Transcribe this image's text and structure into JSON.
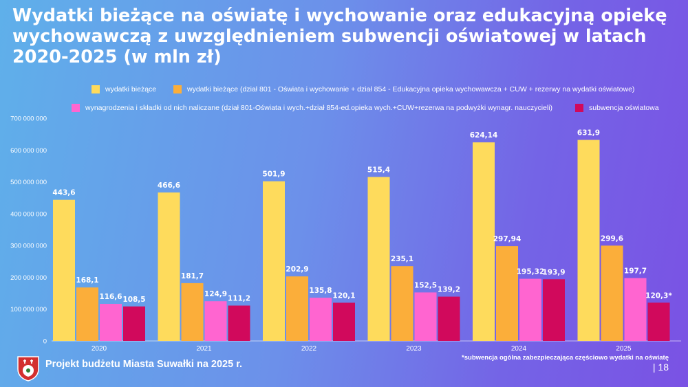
{
  "page": {
    "title": "Wydatki bieżące na oświatę i wychowanie oraz edukacyjną opiekę wychowawczą z uwzględnieniem subwencji oświatowej w latach 2020-2025 (w mln zł)",
    "footer": "Projekt budżetu Miasta Suwałki na 2025 r.",
    "footnote": "*subwencja ogólna zabezpieczająca częściowo wydatki na oświatę",
    "page_number": "| 18",
    "logo_icon": "suwalki-coat-of-arms-icon"
  },
  "chart_data": {
    "type": "bar",
    "categories": [
      "2020",
      "2021",
      "2022",
      "2023",
      "2024",
      "2025"
    ],
    "ylim": [
      0,
      700000000
    ],
    "yticks": [
      0,
      100000000,
      200000000,
      300000000,
      400000000,
      500000000,
      600000000,
      700000000
    ],
    "ytick_labels": [
      "0",
      "100 000 000",
      "200 000 000",
      "300 000 000",
      "400 000 000",
      "500 000 000",
      "600 000 000",
      "700 000 000"
    ],
    "legend_position": "top",
    "series": [
      {
        "name": "wydatki bieżące",
        "color": "#fedb5c",
        "values": [
          443600000,
          466600000,
          501900000,
          515400000,
          624140000,
          631900000
        ],
        "labels": [
          "443,6",
          "466,6",
          "501,9",
          "515,4",
          "624,14",
          "631,9"
        ]
      },
      {
        "name": "wydatki bieżące (dział 801 - Oświata i wychowanie + dział 854 - Edukacyjna opieka wychowawcza + CUW + rezerwy na wydatki oświatowe)",
        "color": "#fbae3a",
        "values": [
          168100000,
          181700000,
          202900000,
          235100000,
          297940000,
          299600000
        ],
        "labels": [
          "168,1",
          "181,7",
          "202,9",
          "235,1",
          "297,94",
          "299,6"
        ]
      },
      {
        "name": "wynagrodzenia i składki od nich naliczane (dział 801-Oświata i wych.+dział 854-ed.opieka wych.+CUW+rezerwa na podwyżki wynagr. nauczycieli)",
        "color": "#ff65d0",
        "values": [
          116600000,
          124900000,
          135800000,
          152500000,
          195320000,
          197700000
        ],
        "labels": [
          "116,6",
          "124,9",
          "135,8",
          "152,5",
          "195,32",
          "197,7"
        ]
      },
      {
        "name": "subwencja oświatowa",
        "color": "#d1095c",
        "values": [
          108500000,
          111200000,
          120100000,
          139200000,
          193900000,
          120300000
        ],
        "labels": [
          "108,5",
          "111,2",
          "120,1",
          "139,2",
          "193,9",
          "120,3*"
        ]
      }
    ]
  }
}
